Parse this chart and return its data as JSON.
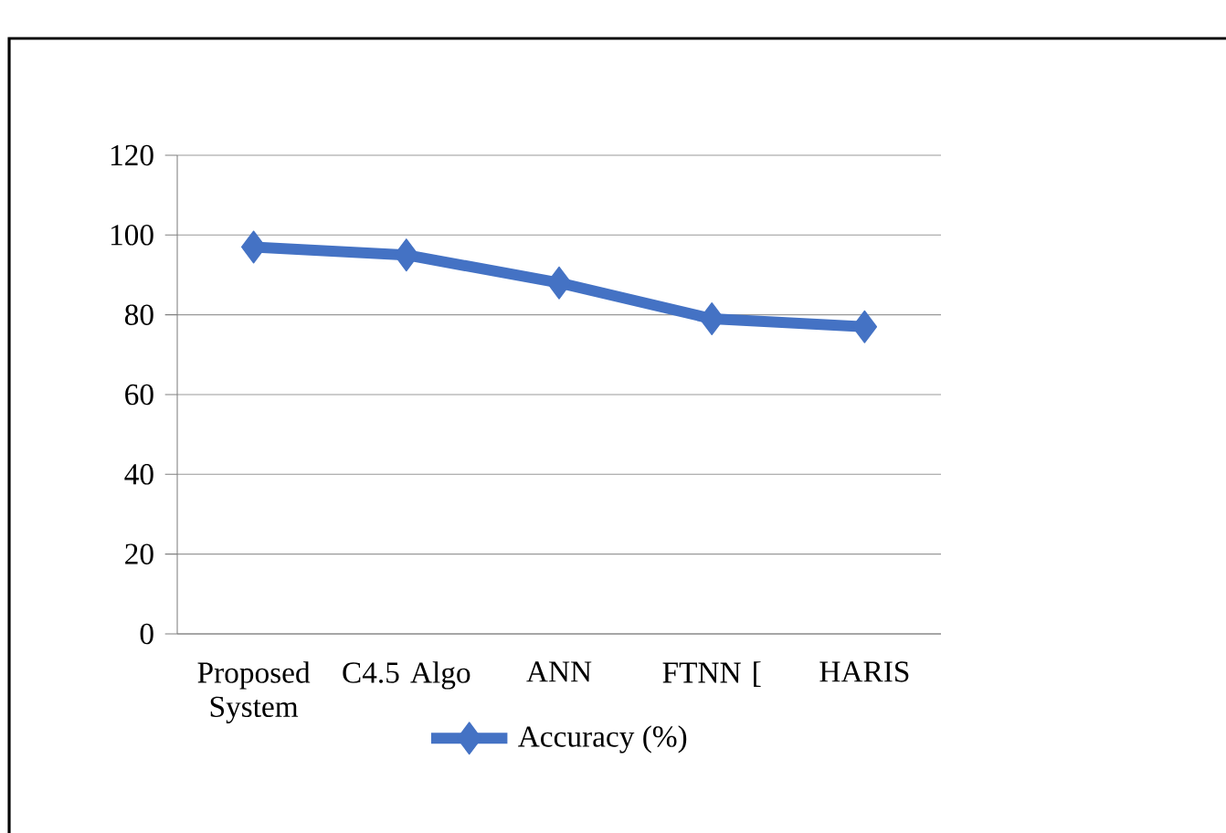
{
  "chart_data": {
    "type": "line",
    "categories": [
      "Proposed System",
      "C4.5 Algo",
      "ANN",
      "FTNN [",
      "HARIS"
    ],
    "series": [
      {
        "name": "Accuracy (%)",
        "color": "#4472c4",
        "values": [
          97,
          95,
          88,
          79,
          77
        ]
      }
    ],
    "ylim": [
      0,
      120
    ],
    "yticks": [
      0,
      20,
      40,
      60,
      80,
      100,
      120
    ],
    "grid": "y",
    "legend": "bottom",
    "marker": "diamond",
    "line_style": "solid"
  }
}
